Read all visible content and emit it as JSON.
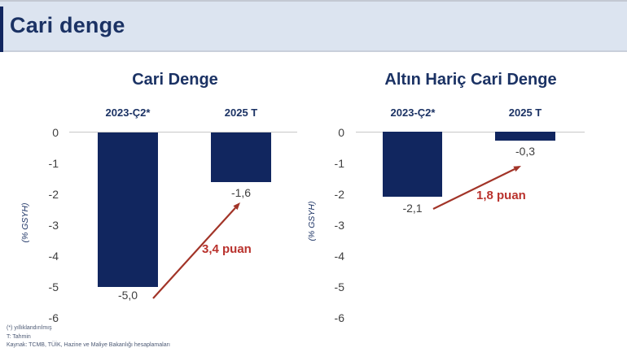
{
  "header": {
    "title": "Cari denge"
  },
  "footnotes": {
    "line1": "(*) yıllıklandırılmış",
    "line2": "T: Tahmin",
    "line3": "Kaynak: TCMB, TÜİK, Hazine ve Maliye Bakanlığı hesaplamaları"
  },
  "colors": {
    "bar_navy": "#11265f",
    "header_bg": "#dce4f0",
    "title_navy": "#1b3264",
    "annotation_red": "#b9322d",
    "arrow_red": "#a23428",
    "axis_line_gray": "#c8c8c8",
    "tick_gray": "#3f3f3f"
  },
  "chart_data": [
    {
      "type": "bar",
      "title": "Cari Denge",
      "categories": [
        "2023-Ç2*",
        "2025 T"
      ],
      "values": [
        -5.0,
        -1.6
      ],
      "value_labels": [
        "-5,0",
        "-1,6"
      ],
      "annotation": "3,4 puan",
      "xlabel": "",
      "ylabel": "(% GSYH)",
      "ylim": [
        -6,
        0
      ],
      "yticks": [
        "0",
        "-1",
        "-2",
        "-3",
        "-4",
        "-5",
        "-6"
      ],
      "grid": false,
      "legend": "none"
    },
    {
      "type": "bar",
      "title": "Altın Hariç Cari Denge",
      "categories": [
        "2023-Ç2*",
        "2025 T"
      ],
      "values": [
        -2.1,
        -0.3
      ],
      "value_labels": [
        "-2,1",
        "-0,3"
      ],
      "annotation": "1,8 puan",
      "xlabel": "",
      "ylabel": "(% GSYH)",
      "ylim": [
        -6,
        0
      ],
      "yticks": [
        "0",
        "-1",
        "-2",
        "-3",
        "-4",
        "-5",
        "-6"
      ],
      "grid": false,
      "legend": "none"
    }
  ]
}
